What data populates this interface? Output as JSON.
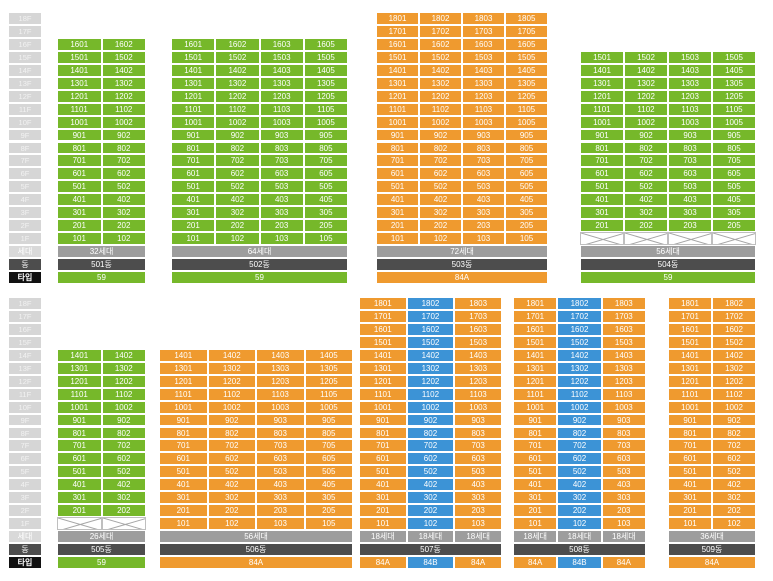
{
  "floor_labels": [
    "18F",
    "17F",
    "16F",
    "15F",
    "14F",
    "13F",
    "12F",
    "11F",
    "10F",
    "9F",
    "8F",
    "7F",
    "6F",
    "5F",
    "4F",
    "3F",
    "2F",
    "1F"
  ],
  "row_labels": {
    "households": "세대",
    "building": "동",
    "type": "타입"
  },
  "colors": {
    "type_59": "#76b82a",
    "type_84A": "#ef9a2f",
    "type_84B": "#3c93d6",
    "floor_label_bg": "#d6d6d6"
  },
  "top_row": [
    {
      "name": "501동",
      "households": "32세대",
      "type": "59",
      "columns": [
        {
          "line": "01",
          "type": "59"
        },
        {
          "line": "02",
          "type": "59"
        }
      ],
      "top_floor": 16,
      "empty_floors": []
    },
    {
      "name": "502동",
      "households": "64세대",
      "type": "59",
      "columns": [
        {
          "line": "01",
          "type": "59"
        },
        {
          "line": "02",
          "type": "59"
        },
        {
          "line": "03",
          "type": "59"
        },
        {
          "line": "05",
          "type": "59"
        }
      ],
      "top_floor": 16,
      "empty_floors": []
    },
    {
      "name": "503동",
      "households": "72세대",
      "type": "84A",
      "columns": [
        {
          "line": "01",
          "type": "84A"
        },
        {
          "line": "02",
          "type": "84A"
        },
        {
          "line": "03",
          "type": "84A"
        },
        {
          "line": "05",
          "type": "84A"
        }
      ],
      "top_floor": 18,
      "empty_floors": []
    },
    {
      "name": "504동",
      "households": "56세대",
      "type": "59",
      "columns": [
        {
          "line": "01",
          "type": "59"
        },
        {
          "line": "02",
          "type": "59"
        },
        {
          "line": "03",
          "type": "59"
        },
        {
          "line": "05",
          "type": "59"
        }
      ],
      "top_floor": 15,
      "empty_floors": [
        1
      ]
    }
  ],
  "bottom_row": [
    {
      "name": "505동",
      "households": "26세대",
      "type": "59",
      "columns": [
        {
          "line": "01",
          "type": "59"
        },
        {
          "line": "02",
          "type": "59"
        }
      ],
      "top_floor": 14,
      "empty_floors": [
        1
      ]
    },
    {
      "name": "506동",
      "households": "56세대",
      "type": "84A",
      "columns": [
        {
          "line": "01",
          "type": "84A"
        },
        {
          "line": "02",
          "type": "84A"
        },
        {
          "line": "03",
          "type": "84A"
        },
        {
          "line": "05",
          "type": "84A"
        }
      ],
      "top_floor": 14,
      "empty_floors": []
    },
    {
      "name": "507동",
      "households": "",
      "type": "",
      "column_households": [
        "18세대",
        "18세대",
        "18세대"
      ],
      "column_types": [
        "84A",
        "84B",
        "84A"
      ],
      "columns": [
        {
          "line": "01",
          "type": "84A"
        },
        {
          "line": "02",
          "type": "84B"
        },
        {
          "line": "03",
          "type": "84A"
        }
      ],
      "top_floor": 18,
      "empty_floors": []
    },
    {
      "name": "508동",
      "households": "",
      "type": "",
      "column_households": [
        "18세대",
        "18세대",
        "18세대"
      ],
      "column_types": [
        "84A",
        "84B",
        "84A"
      ],
      "columns": [
        {
          "line": "01",
          "type": "84A"
        },
        {
          "line": "02",
          "type": "84B"
        },
        {
          "line": "03",
          "type": "84A"
        }
      ],
      "top_floor": 18,
      "empty_floors": []
    },
    {
      "name": "509동",
      "households": "36세대",
      "type": "84A",
      "columns": [
        {
          "line": "01",
          "type": "84A"
        },
        {
          "line": "02",
          "type": "84A"
        }
      ],
      "top_floor": 18,
      "empty_floors": []
    }
  ]
}
